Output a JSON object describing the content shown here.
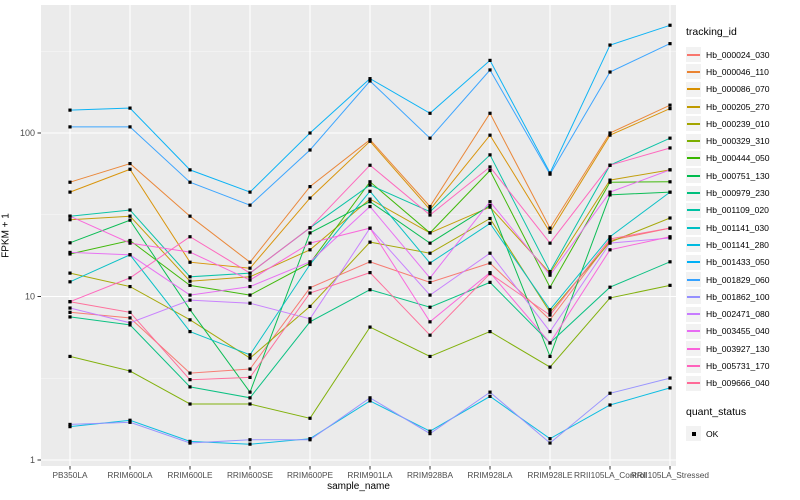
{
  "figure": {
    "panel_bg": "#EBEBEB",
    "grid_color": "#FFFFFF",
    "axis_text_color": "#4D4D4D",
    "tick_color": "#333333",
    "marker_color": "#000000"
  },
  "chart_data": {
    "type": "line",
    "title": "",
    "xlabel": "sample_name",
    "ylabel": "FPKM + 1",
    "y_scale": "log10",
    "ylim": [
      1,
      500
    ],
    "y_ticks": [
      1,
      10,
      100
    ],
    "y_minor_ticks": [
      3.162,
      31.62,
      316.2
    ],
    "grid": true,
    "legend_position": "right",
    "legend_title": "tracking_id",
    "marker": "filled-black-square",
    "categories": [
      "PB350LA",
      "RRIM600LA",
      "RRIM600LE",
      "RRIM600SE",
      "RRIM600PE",
      "RRIM901LA",
      "RRIM928BA",
      "RRIM928LA",
      "RRIM928LE",
      "RRII105LA_Control",
      "RRII105LA_Stressed"
    ],
    "series": [
      {
        "name": "Hb_000024_030",
        "color": "#F8766D",
        "values": [
          8.0,
          7.4,
          3.4,
          3.6,
          11.3,
          16.3,
          12.2,
          16.0,
          7.2,
          22.0,
          26.2
        ]
      },
      {
        "name": "Hb_000046_110",
        "color": "#EA8331",
        "values": [
          50,
          65,
          31,
          16.2,
          47,
          91,
          35.5,
          132,
          26.2,
          100,
          148
        ]
      },
      {
        "name": "Hb_000086_070",
        "color": "#D89000",
        "values": [
          43.5,
          60,
          16.2,
          14.9,
          40,
          89,
          34,
          97,
          24.7,
          97,
          141
        ]
      },
      {
        "name": "Hb_000205_270",
        "color": "#C09B00",
        "values": [
          29.5,
          31,
          12.4,
          13.2,
          19.3,
          39.4,
          24.5,
          35.2,
          13.9,
          51.5,
          59.5
        ]
      },
      {
        "name": "Hb_000239_010",
        "color": "#A3A500",
        "values": [
          13.9,
          11.5,
          7.2,
          4.2,
          8.7,
          21.5,
          18.4,
          30,
          8.0,
          21.5,
          30.2
        ]
      },
      {
        "name": "Hb_000329_310",
        "color": "#7CAE00",
        "values": [
          4.3,
          3.5,
          2.2,
          2.2,
          1.8,
          6.5,
          4.3,
          6.1,
          3.7,
          9.8,
          11.7
        ]
      },
      {
        "name": "Hb_000444_050",
        "color": "#39B600",
        "values": [
          18.2,
          22,
          11.7,
          10.2,
          16,
          50.3,
          24.5,
          59,
          11.4,
          50,
          50.3
        ]
      },
      {
        "name": "Hb_000751_130",
        "color": "#00BB4E",
        "values": [
          21.3,
          29.3,
          8.3,
          2.6,
          24.5,
          38,
          21.2,
          36,
          4.3,
          41.8,
          43.5
        ]
      },
      {
        "name": "Hb_000979_230",
        "color": "#00BF7D",
        "values": [
          7.5,
          6.7,
          2.8,
          2.4,
          7.0,
          11,
          8.6,
          12.2,
          5.2,
          11.4,
          16.3
        ]
      },
      {
        "name": "Hb_001109_020",
        "color": "#00C1A3",
        "values": [
          31,
          33.8,
          13.2,
          13.9,
          26.3,
          48,
          33,
          73.5,
          14.2,
          63.5,
          93
        ]
      },
      {
        "name": "Hb_001141_030",
        "color": "#00BFC4",
        "values": [
          12.3,
          18,
          6.1,
          4.4,
          15.7,
          44,
          16,
          28,
          8.3,
          23.2,
          43.5
        ]
      },
      {
        "name": "Hb_001141_280",
        "color": "#00BAE0",
        "values": [
          1.6,
          1.75,
          1.3,
          1.25,
          1.35,
          2.3,
          1.5,
          2.45,
          1.35,
          2.17,
          2.76
        ]
      },
      {
        "name": "Hb_001433_050",
        "color": "#00B0F6",
        "values": [
          138,
          142,
          59.5,
          43.5,
          100,
          215,
          132,
          278,
          57,
          345,
          456
        ]
      },
      {
        "name": "Hb_001829_060",
        "color": "#35A2FF",
        "values": [
          109,
          109,
          50,
          36.2,
          78.7,
          208,
          93,
          243,
          56,
          236,
          352
        ]
      },
      {
        "name": "Hb_001862_100",
        "color": "#9590FF",
        "values": [
          1.65,
          1.7,
          1.27,
          1.33,
          1.33,
          2.4,
          1.45,
          2.6,
          1.27,
          2.56,
          3.17
        ]
      },
      {
        "name": "Hb_002471_080",
        "color": "#C77CFF",
        "values": [
          8.5,
          6.9,
          9.5,
          9.1,
          7.3,
          26.2,
          10.2,
          18.4,
          6.1,
          21.2,
          22.8
        ]
      },
      {
        "name": "Hb_003455_040",
        "color": "#E76BF3",
        "values": [
          18.6,
          18,
          10.2,
          11.5,
          16.3,
          35.5,
          13,
          38,
          13.5,
          43.5,
          59.5
        ]
      },
      {
        "name": "Hb_003927_130",
        "color": "#FA62DB",
        "values": [
          31,
          21.2,
          18.7,
          12.6,
          21.2,
          26.2,
          7.0,
          14,
          5.2,
          19.3,
          23.2
        ]
      },
      {
        "name": "Hb_005731_170",
        "color": "#FF62BC",
        "values": [
          9.3,
          13,
          23.2,
          13.9,
          26.3,
          63.5,
          31.5,
          62,
          21.2,
          63.5,
          81
        ]
      },
      {
        "name": "Hb_009666_040",
        "color": "#FF6A98",
        "values": [
          9.3,
          8.0,
          3.1,
          3.2,
          10.5,
          14,
          5.8,
          13.8,
          7.7,
          22.5,
          26.2
        ]
      }
    ],
    "quant_legend": {
      "title": "quant_status",
      "entries": [
        {
          "label": "OK",
          "marker": "black-square"
        }
      ]
    }
  }
}
